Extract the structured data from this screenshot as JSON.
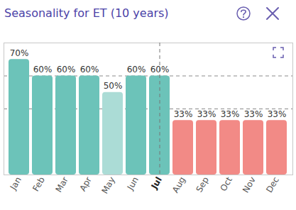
{
  "chart_data": {
    "type": "bar",
    "title": "Seasonality for ET (10 years)",
    "categories": [
      "Jan",
      "Feb",
      "Mar",
      "Apr",
      "May",
      "Jun",
      "Jul",
      "Aug",
      "Sep",
      "Oct",
      "Nov",
      "Dec"
    ],
    "values": [
      70,
      60,
      60,
      60,
      50,
      60,
      60,
      33,
      33,
      33,
      33,
      33
    ],
    "value_labels": [
      "70%",
      "60%",
      "60%",
      "60%",
      "50%",
      "60%",
      "60%",
      "33%",
      "33%",
      "33%",
      "33%",
      "33%"
    ],
    "colors": [
      "#6cc3b9",
      "#6cc3b9",
      "#6cc3b9",
      "#6cc3b9",
      "#abdcd6",
      "#6cc3b9",
      "#6cc3b9",
      "#f28a86",
      "#f28a86",
      "#f28a86",
      "#f28a86",
      "#f28a86"
    ],
    "ylim": [
      0,
      80
    ],
    "yticks": [
      40,
      60
    ],
    "grid": true,
    "data_labels": true,
    "tick_labels": "x",
    "highlight": "Jul"
  }
}
